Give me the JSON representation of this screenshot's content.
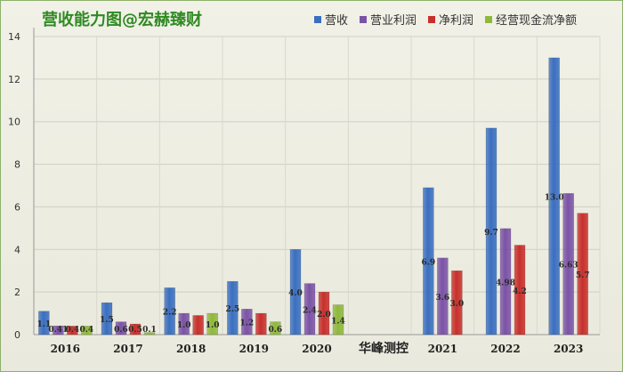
{
  "colors": {
    "营收": "#3a6fc0",
    "营业利润": "#7b53a6",
    "净利润": "#c8302c",
    "经营现金流净额": "#90b83c"
  },
  "watermark": "华峰测控",
  "chart_data": {
    "type": "bar",
    "title": "营收能力图@宏赫臻财",
    "xlabel": "",
    "ylabel": "",
    "ylim": [
      0,
      14
    ],
    "yticks": [
      0,
      2,
      4,
      6,
      8,
      10,
      12,
      14
    ],
    "grid": true,
    "legend_position": "top-right",
    "categories": [
      "2016",
      "2017",
      "2018",
      "2019",
      "2020",
      "",
      "2021",
      "2022",
      "2023"
    ],
    "series": [
      {
        "name": "营收",
        "values": [
          1.1,
          1.5,
          2.2,
          2.5,
          4.0,
          null,
          6.9,
          9.7,
          13.0
        ],
        "labels": [
          "1.1",
          "1.5",
          "2.2",
          "2.5",
          "4.0",
          "",
          "6.9",
          "9.7",
          "13.0"
        ]
      },
      {
        "name": "营业利润",
        "values": [
          0.41,
          0.6,
          1.0,
          1.2,
          2.4,
          null,
          3.6,
          4.98,
          6.63
        ],
        "labels": [
          "0.41",
          "0.6",
          "1.0",
          "1.2",
          "2.4",
          "",
          "3.6",
          "4.98",
          "6.63"
        ]
      },
      {
        "name": "净利润",
        "values": [
          0.4,
          0.5,
          0.9,
          1.0,
          2.0,
          null,
          3.0,
          4.2,
          5.7
        ],
        "labels": [
          "0.4",
          "0.5",
          "",
          "",
          "2.0",
          "",
          "3.0",
          "4.2",
          "5.7"
        ]
      },
      {
        "name": "经营现金流净额",
        "values": [
          0.4,
          0.1,
          1.0,
          0.6,
          1.4,
          null,
          null,
          null,
          null
        ],
        "labels": [
          "0.4",
          "0.1",
          "1.0",
          "0.6",
          "1.4",
          "",
          "",
          "",
          ""
        ]
      }
    ]
  }
}
